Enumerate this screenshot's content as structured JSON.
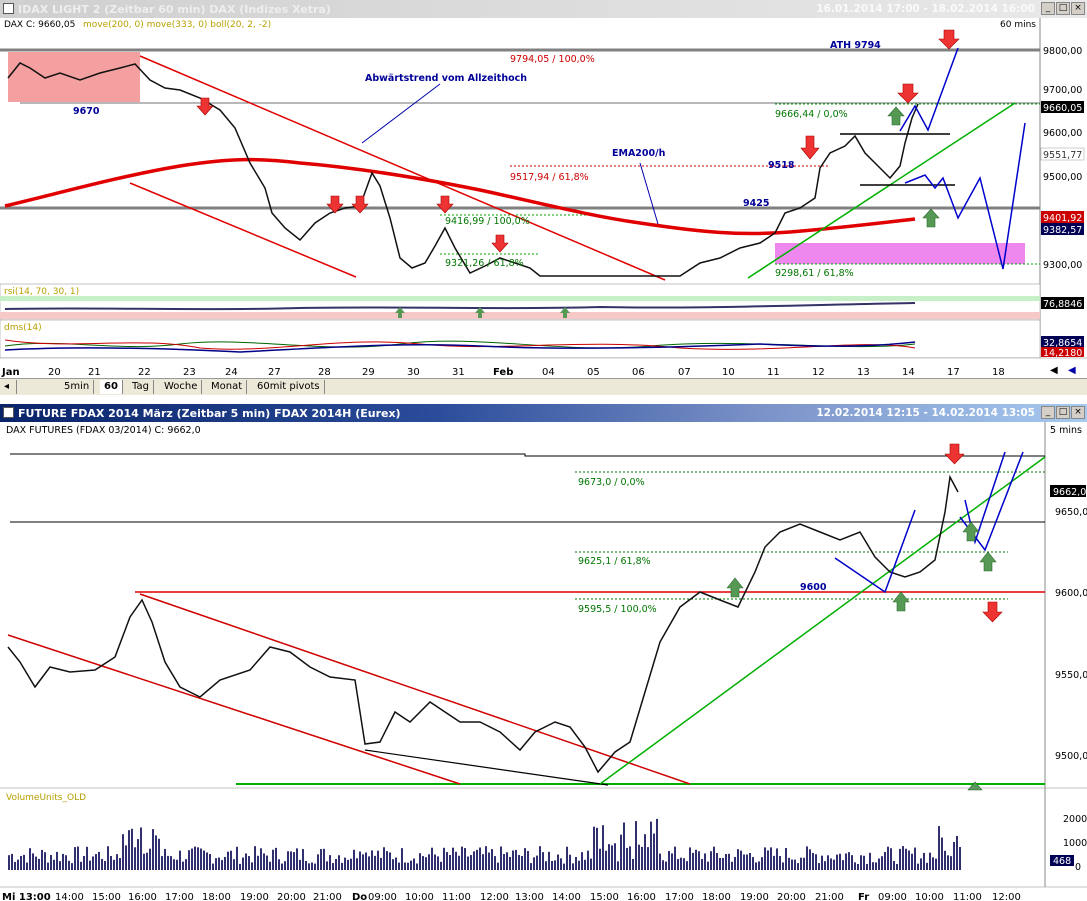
{
  "top_window": {
    "title": "IDAX LIGHT 2 (Zeitbar 60 min)  DAX (Indizes Xetra)",
    "date_range": "16.01.2014 17:00 - 18.02.2014 16:00",
    "timeframe": "60 mins",
    "info_line_symbol": "DAX C: 9660,05",
    "info_line_indicators": "move(200, 0) move(333, 0) boll(20, 2, -2)",
    "price_scale": [
      "9800,00",
      "9700,00",
      "9600,00",
      "9500,00",
      "9300,00"
    ],
    "price_badges": {
      "last": "9660,05",
      "ema_a": "9551,77",
      "ema_b": "9401,92",
      "ema_c": "9382,57"
    },
    "annotations": {
      "ath_value": "9794,05 / 100,0%",
      "ath_label": "ATH 9794",
      "downtrend_label": "Abwärtstrend vom Allzeithoch",
      "ema_label": "EMA200/h",
      "level_9670": "9670",
      "fib_9666": "9666,44 / 0,0%",
      "fib_9517": "9517,94 / 61,8%",
      "level_9518": "9518",
      "level_9425": "9425",
      "fib_9416": "9416,99 / 100,0%",
      "fib_9321": "9321,26 / 61,8%",
      "fib_9298": "9298,61 / 61,8%"
    },
    "rsi": {
      "label": "rsi(14, 70, 30, 1)",
      "value": "76,8846"
    },
    "dms": {
      "label": "dms(14)",
      "value_a": "32,8654",
      "value_b": "14,2180"
    },
    "x_axis": [
      "Jan",
      "20",
      "21",
      "22",
      "23",
      "24",
      "27",
      "28",
      "29",
      "30",
      "31",
      "Feb",
      "04",
      "05",
      "06",
      "07",
      "10",
      "11",
      "12",
      "13",
      "14",
      "17",
      "18"
    ],
    "tabs": [
      "5min",
      "60",
      "Tag",
      "Woche",
      "Monat",
      "60mit pivots"
    ],
    "selected_tab": "60"
  },
  "bottom_window": {
    "title": "FUTURE FDAX 2014 März (Zeitbar 5 min)  FDAX 2014H (Eurex)",
    "date_range": "12.02.2014 12:15 - 14.02.2014 13:05",
    "timeframe": "5 mins",
    "info_line": "DAX FUTURES (FDAX 03/2014) C: 9662,0",
    "price_scale": [
      "9650,0",
      "9600,0",
      "9550,0",
      "9500,0"
    ],
    "last_badge": "9662,0",
    "annotations": {
      "fib_9673": "9673,0 / 0,0%",
      "fib_9625": "9625,1 / 61,8%",
      "level_9600": "9600",
      "fib_9595": "9595,5 / 100,0%"
    },
    "volume": {
      "label": "VolumeUnits_OLD",
      "scale": [
        "2000",
        "1000",
        "0"
      ],
      "last": "468"
    },
    "x_axis": [
      "Mi 13:00",
      "14:00",
      "15:00",
      "16:00",
      "17:00",
      "18:00",
      "19:00",
      "20:00",
      "21:00",
      "Do",
      "09:00",
      "10:00",
      "11:00",
      "12:00",
      "13:00",
      "14:00",
      "15:00",
      "16:00",
      "17:00",
      "18:00",
      "19:00",
      "20:00",
      "21:00",
      "Fr",
      "09:00",
      "10:00",
      "11:00",
      "12:00"
    ]
  },
  "colors": {
    "active_title": "#0a246a",
    "downtrend": "#e00000",
    "ema": "#e00000",
    "forecast": "#0000cc",
    "uptrend": "#00b000",
    "fib_red": "#cc0000",
    "fib_green": "#007700",
    "zone_red": "#f4a0a0",
    "zone_magenta": "#ee88ee",
    "arrow_down": "#ee3333",
    "arrow_up": "#559955"
  }
}
